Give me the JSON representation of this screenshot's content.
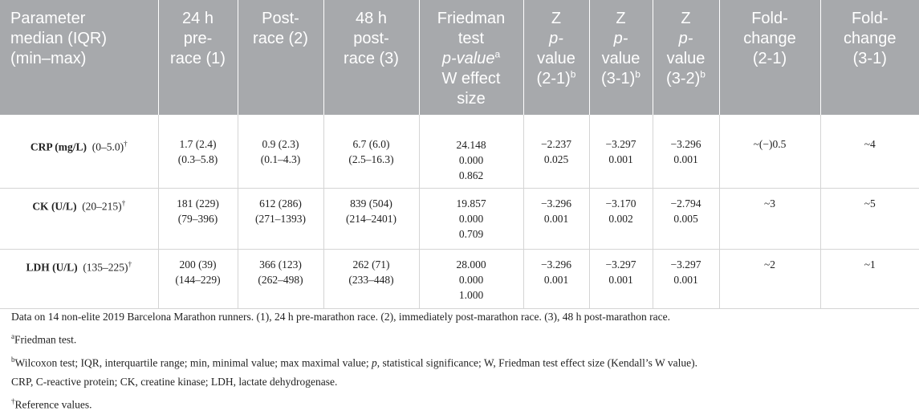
{
  "headers": [
    [
      "Parameter",
      "median (IQR)",
      "(min–max)"
    ],
    [
      "24 h",
      "pre-",
      "race (1)"
    ],
    [
      "Post-",
      "race (2)"
    ],
    [
      "48 h",
      "post-",
      "race (3)"
    ],
    [
      "Friedman",
      "test",
      "p-value",
      "W effect",
      "size"
    ],
    [
      "Z",
      "p-",
      "value",
      "(2-1)"
    ],
    [
      "Z",
      "p-",
      "value",
      "(3-1)"
    ],
    [
      "Z",
      "p-",
      "value",
      "(3-2)"
    ],
    [
      "Fold-",
      "change",
      "(2-1)"
    ],
    [
      "Fold-",
      "change",
      "(3-1)"
    ]
  ],
  "header_sup": {
    "friedman": "a",
    "z21": "b",
    "z31": "b",
    "z32": "b"
  },
  "rows": [
    {
      "name": "CRP (mg/L)",
      "ref": "(0–5.0)",
      "ref_sup": "†",
      "pre": [
        "1.7 (2.4)",
        "(0.3–5.8)"
      ],
      "post": [
        "0.9 (2.3)",
        "(0.1–4.3)"
      ],
      "post48": [
        "6.7 (6.0)",
        "(2.5–16.3)"
      ],
      "friedman": [
        "24.148",
        "0.000",
        "0.862"
      ],
      "z21": [
        "−2.237",
        "0.025"
      ],
      "z31": [
        "−3.297",
        "0.001"
      ],
      "z32": [
        "−3.296",
        "0.001"
      ],
      "fc21": "~(−)0.5",
      "fc31": "~4"
    },
    {
      "name": "CK (U/L)",
      "ref": "(20–215)",
      "ref_sup": "†",
      "pre": [
        "181 (229)",
        "(79–396)"
      ],
      "post": [
        "612 (286)",
        "(271–1393)"
      ],
      "post48": [
        "839 (504)",
        "(214–2401)"
      ],
      "friedman": [
        "19.857",
        "0.000",
        "0.709"
      ],
      "z21": [
        "−3.296",
        "0.001"
      ],
      "z31": [
        "−3.170",
        "0.002"
      ],
      "z32": [
        "−2.794",
        "0.005"
      ],
      "fc21": "~3",
      "fc31": "~5"
    },
    {
      "name": "LDH (U/L)",
      "ref": "(135–225)",
      "ref_sup": "†",
      "pre": [
        "200 (39)",
        "(144–229)"
      ],
      "post": [
        "366 (123)",
        "(262–498)"
      ],
      "post48": [
        "262 (71)",
        "(233–448)"
      ],
      "friedman": [
        "28.000",
        "0.000",
        "1.000"
      ],
      "z21": [
        "−3.296",
        "0.001"
      ],
      "z31": [
        "−3.297",
        "0.001"
      ],
      "z32": [
        "−3.297",
        "0.001"
      ],
      "fc21": "~2",
      "fc31": "~1"
    }
  ],
  "footnotes": {
    "data": "Data on 14 non-elite 2019 Barcelona Marathon runners. (1), 24 h pre-marathon race. (2), immediately post-marathon race. (3), 48 h post-marathon race.",
    "a_mark": "a",
    "a_text": "Friedman test.",
    "b_mark": "b",
    "b_text_1": "Wilcoxon test; IQR, interquartile range; min, minimal value; max maximal value; ",
    "b_p": "p",
    "b_text_2": ", statistical significance; W, Friedman test effect size (Kendall’s W value).",
    "abbrev": "CRP, C-reactive protein; CK, creatine kinase; LDH, lactate dehydrogenase.",
    "dag_mark": "†",
    "dag_text": "Reference values."
  },
  "colors": {
    "header_bg": "#a7a9ac",
    "header_text": "#ffffff",
    "rule": "#d4d4d4"
  }
}
